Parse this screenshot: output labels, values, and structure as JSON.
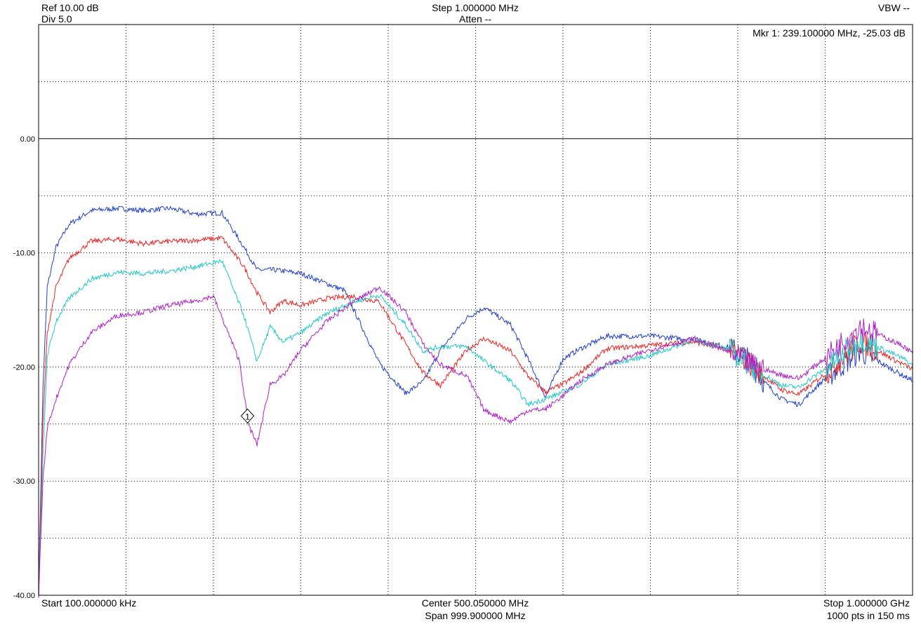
{
  "header": {
    "ref": "Ref 10.00 dB",
    "div": "Div 5.0",
    "step": "Step 1.000000 MHz",
    "atten": "Atten --",
    "vbw": "VBW --",
    "marker_readout": "Mkr 1: 239.100000 MHz, -25.03 dB"
  },
  "footer": {
    "start": "Start 100.000000 kHz",
    "center": "Center 500.050000 MHz",
    "span": "Span 999.900000 MHz",
    "stop": "Stop 1.000000 GHz",
    "points": "1000 pts in 150 ms"
  },
  "colors": {
    "background": "#ffffff",
    "grid": "#000000",
    "blue": "#1f3fc8",
    "red": "#ee2222",
    "cyan": "#22c8c8",
    "magenta": "#b020c8"
  },
  "chart_data": {
    "type": "line",
    "title": "",
    "xlabel": "",
    "ylabel": "",
    "xlim": [
      0.1,
      1000
    ],
    "ylim": [
      -40,
      10
    ],
    "x_unit": "MHz",
    "y_unit": "dB",
    "yticks": [
      {
        "value": 0,
        "label": "0.00"
      },
      {
        "value": -10,
        "label": "-10.00"
      },
      {
        "value": -20,
        "label": "-20.00"
      },
      {
        "value": -30,
        "label": "-30.00"
      },
      {
        "value": -40,
        "label": "-40.00"
      }
    ],
    "grid": true,
    "legend": "none",
    "marker": {
      "label": "1",
      "x": 239.1,
      "y": -25.03
    },
    "series": [
      {
        "color": "#1f3fc8",
        "x": [
          0.1,
          5,
          10,
          20,
          35,
          60,
          90,
          120,
          150,
          180,
          210,
          235,
          250,
          270,
          300,
          350,
          390,
          420,
          440,
          460,
          490,
          510,
          540,
          560,
          580,
          600,
          620,
          650,
          700,
          750,
          790,
          810,
          830,
          850,
          870,
          880,
          900,
          940,
          990,
          1000
        ],
        "y": [
          -40,
          -22,
          -13,
          -9.5,
          -7.5,
          -6.3,
          -6.1,
          -6.3,
          -6.1,
          -6.6,
          -6.5,
          -9.5,
          -11.5,
          -11.5,
          -11.8,
          -13.3,
          -19.7,
          -22.3,
          -21.3,
          -18.5,
          -15.7,
          -14.8,
          -16.3,
          -19.3,
          -22.6,
          -19.3,
          -18.4,
          -17.3,
          -17.3,
          -17.6,
          -18.3,
          -19.2,
          -21.3,
          -22.8,
          -23.3,
          -22.5,
          -21.0,
          -18.6,
          -20.8,
          -21.2
        ]
      },
      {
        "color": "#ee2222",
        "x": [
          0.1,
          5,
          10,
          20,
          35,
          60,
          90,
          120,
          150,
          180,
          210,
          235,
          250,
          265,
          280,
          300,
          330,
          360,
          390,
          420,
          440,
          460,
          490,
          510,
          540,
          560,
          580,
          600,
          620,
          650,
          700,
          750,
          790,
          810,
          830,
          850,
          870,
          880,
          900,
          940,
          990,
          1000
        ],
        "y": [
          -40,
          -25,
          -17,
          -13,
          -10.5,
          -9.0,
          -8.8,
          -9.2,
          -9.0,
          -8.9,
          -8.7,
          -11.2,
          -13.5,
          -15.2,
          -14.2,
          -14.6,
          -14.0,
          -13.8,
          -14.3,
          -18.0,
          -20.5,
          -21.6,
          -18.5,
          -17.5,
          -18.6,
          -20.8,
          -22.2,
          -21.5,
          -20.5,
          -18.4,
          -18.1,
          -17.8,
          -18.5,
          -19.4,
          -20.8,
          -22.0,
          -22.4,
          -21.8,
          -20.6,
          -17.8,
          -19.8,
          -20.2
        ]
      },
      {
        "color": "#22c8c8",
        "x": [
          0.1,
          5,
          10,
          20,
          35,
          60,
          90,
          120,
          150,
          180,
          210,
          235,
          250,
          265,
          280,
          300,
          330,
          360,
          390,
          420,
          440,
          460,
          490,
          510,
          540,
          560,
          580,
          600,
          620,
          650,
          700,
          750,
          790,
          810,
          830,
          850,
          870,
          880,
          900,
          940,
          990,
          1000
        ],
        "y": [
          -40,
          -28,
          -19,
          -16,
          -14,
          -12.3,
          -11.7,
          -11.8,
          -11.6,
          -11.2,
          -10.7,
          -15.5,
          -19.5,
          -16.5,
          -17.8,
          -17.0,
          -15.3,
          -14.3,
          -13.7,
          -16.3,
          -18.6,
          -18.2,
          -18.2,
          -19.5,
          -21.2,
          -23.3,
          -22.8,
          -22.2,
          -21.5,
          -19.8,
          -19.0,
          -17.6,
          -18.5,
          -19.6,
          -20.7,
          -21.6,
          -21.8,
          -21.2,
          -20.2,
          -17.5,
          -19.3,
          -19.9
        ]
      },
      {
        "color": "#b020c8",
        "x": [
          0.1,
          5,
          10,
          20,
          35,
          60,
          90,
          120,
          150,
          180,
          200,
          230,
          240,
          250,
          265,
          280,
          300,
          330,
          360,
          390,
          420,
          440,
          460,
          490,
          510,
          540,
          560,
          580,
          600,
          620,
          650,
          700,
          750,
          790,
          810,
          830,
          850,
          870,
          880,
          900,
          940,
          990,
          1000
        ],
        "y": [
          -40,
          -30,
          -25.3,
          -22.8,
          -19.8,
          -17.0,
          -15.5,
          -15.2,
          -14.6,
          -14.2,
          -13.8,
          -19.5,
          -25.0,
          -26.8,
          -21.5,
          -20.8,
          -18.5,
          -16.0,
          -14.3,
          -13.0,
          -15.2,
          -18.0,
          -19.8,
          -20.8,
          -23.8,
          -24.8,
          -23.8,
          -23.7,
          -22.5,
          -21.2,
          -19.8,
          -18.5,
          -17.5,
          -18.7,
          -19.6,
          -20.2,
          -20.7,
          -21.0,
          -20.4,
          -19.2,
          -16.4,
          -18.2,
          -18.8
        ]
      }
    ]
  }
}
